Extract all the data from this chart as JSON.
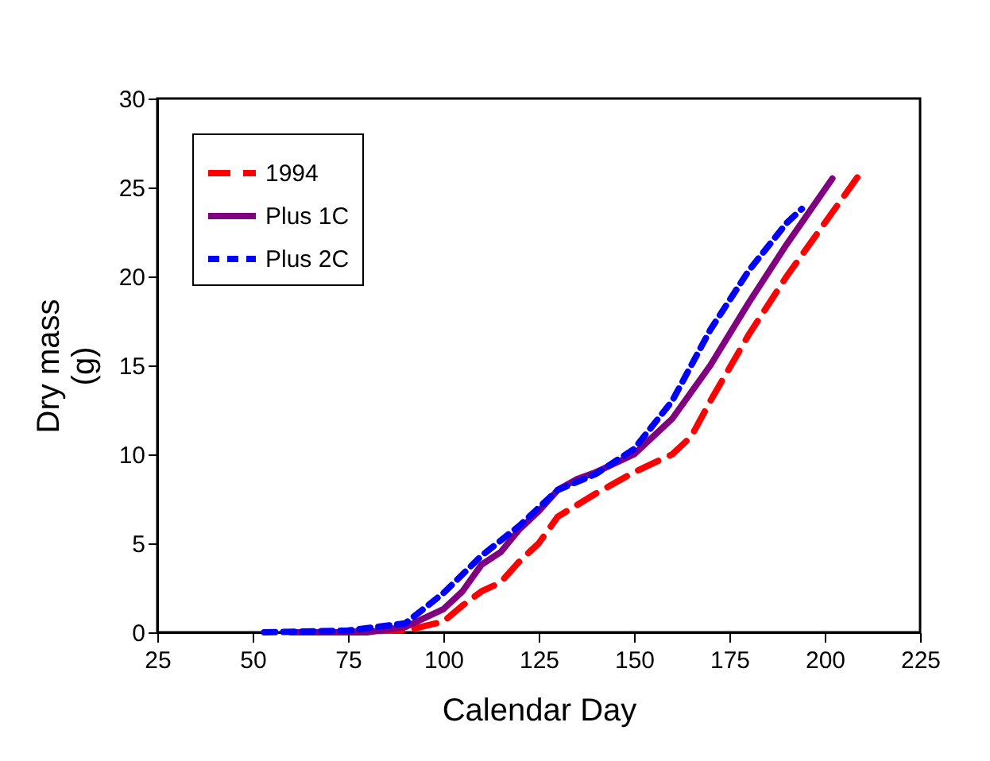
{
  "chart_data": {
    "type": "line",
    "xlabel": "Calendar Day",
    "ylabel": "Dry mass\n(g)",
    "xlim": [
      25,
      225
    ],
    "xticks": [
      25,
      50,
      75,
      100,
      125,
      150,
      175,
      200,
      225
    ],
    "ylim": [
      0,
      30
    ],
    "yticks": [
      0,
      5,
      10,
      15,
      20,
      25,
      30
    ],
    "grid": false,
    "legend": "top left",
    "marker": "none",
    "series": [
      {
        "name": "1994",
        "color": "#ff0000",
        "line_style": "dashed",
        "x": [
          65,
          90,
          100,
          105,
          110,
          115,
          120,
          125,
          130,
          140,
          150,
          160,
          165,
          170,
          180,
          190,
          200,
          209
        ],
        "values": [
          0,
          0.1,
          0.6,
          1.5,
          2.3,
          2.8,
          4.0,
          5.0,
          6.5,
          7.8,
          9.0,
          10.0,
          11.0,
          13.0,
          16.7,
          20.0,
          23.0,
          25.7
        ]
      },
      {
        "name": "Plus 1C",
        "color": "#800080",
        "line_style": "solid",
        "x": [
          60,
          80,
          90,
          100,
          105,
          110,
          115,
          120,
          125,
          130,
          135,
          140,
          150,
          160,
          170,
          180,
          190,
          202
        ],
        "values": [
          0,
          0,
          0.3,
          1.3,
          2.3,
          3.8,
          4.5,
          5.8,
          6.8,
          8.0,
          8.6,
          9.0,
          10.0,
          12.0,
          15.0,
          18.5,
          21.8,
          25.5
        ]
      },
      {
        "name": "Plus 2C",
        "color": "#0000ff",
        "line_style": "dotted",
        "x": [
          53,
          75,
          90,
          100,
          110,
          120,
          130,
          140,
          150,
          160,
          170,
          180,
          190,
          194
        ],
        "values": [
          0,
          0.1,
          0.5,
          2.2,
          4.3,
          6.0,
          8.0,
          8.9,
          10.3,
          13.0,
          17.0,
          20.3,
          23.0,
          23.8
        ]
      }
    ]
  }
}
